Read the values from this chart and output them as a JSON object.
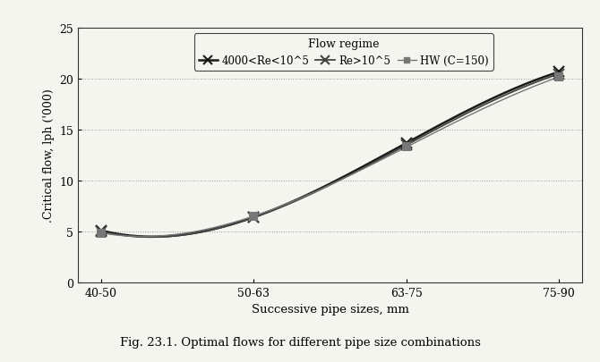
{
  "categories": [
    "40-50",
    "50-63",
    "63-75",
    "75-90"
  ],
  "series": [
    {
      "label": "4000<Re<10^5",
      "values": [
        5.1,
        6.4,
        13.7,
        20.7
      ],
      "color": "#1a1a1a",
      "linestyle": "-",
      "marker": "x",
      "linewidth": 1.8,
      "markersize": 8
    },
    {
      "label": "Re>10^5",
      "values": [
        5.0,
        6.35,
        13.5,
        20.5
      ],
      "color": "#444444",
      "linestyle": "-",
      "marker": "x",
      "linewidth": 1.3,
      "markersize": 8
    },
    {
      "label": "HW (C=150)",
      "values": [
        4.85,
        6.5,
        13.3,
        20.2
      ],
      "color": "#777777",
      "linestyle": "-",
      "marker": "s",
      "linewidth": 1.0,
      "markersize": 6
    }
  ],
  "legend_title": "Flow regime",
  "xlabel": "Successive pipe sizes, mm",
  "ylabel": ".Critical flow, lph ('000)",
  "ylim": [
    0,
    25
  ],
  "yticks": [
    0,
    5,
    10,
    15,
    20,
    25
  ],
  "caption": "Fig. 23.1. Optimal flows for different pipe size combinations",
  "background_color": "#f5f5f0",
  "plot_bg_color": "#f5f5f0",
  "grid_color": "#999999",
  "grid_linestyle": ":"
}
